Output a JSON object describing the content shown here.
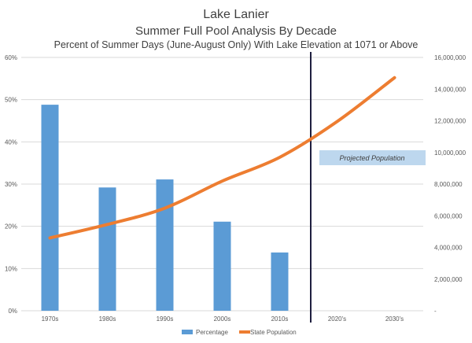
{
  "chart_data": {
    "type": "bar+line",
    "title": "Lake Lanier",
    "subtitle": "Summer Full Pool Analysis By Decade",
    "subtitle2": "Percent of Summer Days (June-August Only) With Lake Elevation at 1071 or Above",
    "categories": [
      "1970s",
      "1980s",
      "1990s",
      "2000s",
      "2010s",
      "2020's",
      "2030's"
    ],
    "y_left": {
      "ticks": [
        "0%",
        "10%",
        "20%",
        "30%",
        "40%",
        "50%",
        "60%"
      ],
      "range": [
        0,
        60
      ]
    },
    "y_right": {
      "ticks": [
        "-",
        "2,000,000",
        "4,000,000",
        "6,000,000",
        "8,000,000",
        "10,000,000",
        "12,000,000",
        "14,000,000",
        "16,000,000"
      ],
      "range": [
        0,
        16000000
      ]
    },
    "series": [
      {
        "name": "Percentage",
        "type": "bar",
        "axis": "left",
        "color": "#5b9bd5",
        "values": [
          48.8,
          29.2,
          31.1,
          21.1,
          13.8,
          null,
          null
        ]
      },
      {
        "name": "State Population",
        "type": "line",
        "axis": "right",
        "color": "#ed7d31",
        "values": [
          4600000,
          5450000,
          6480000,
          8190000,
          9690000,
          11950000,
          14720000
        ]
      }
    ],
    "grid": true,
    "legend_position": "bottom",
    "annotation": {
      "text": "Projected Population",
      "box_color": "#bdd7ee"
    },
    "divider_color": "#1f1f3f"
  }
}
